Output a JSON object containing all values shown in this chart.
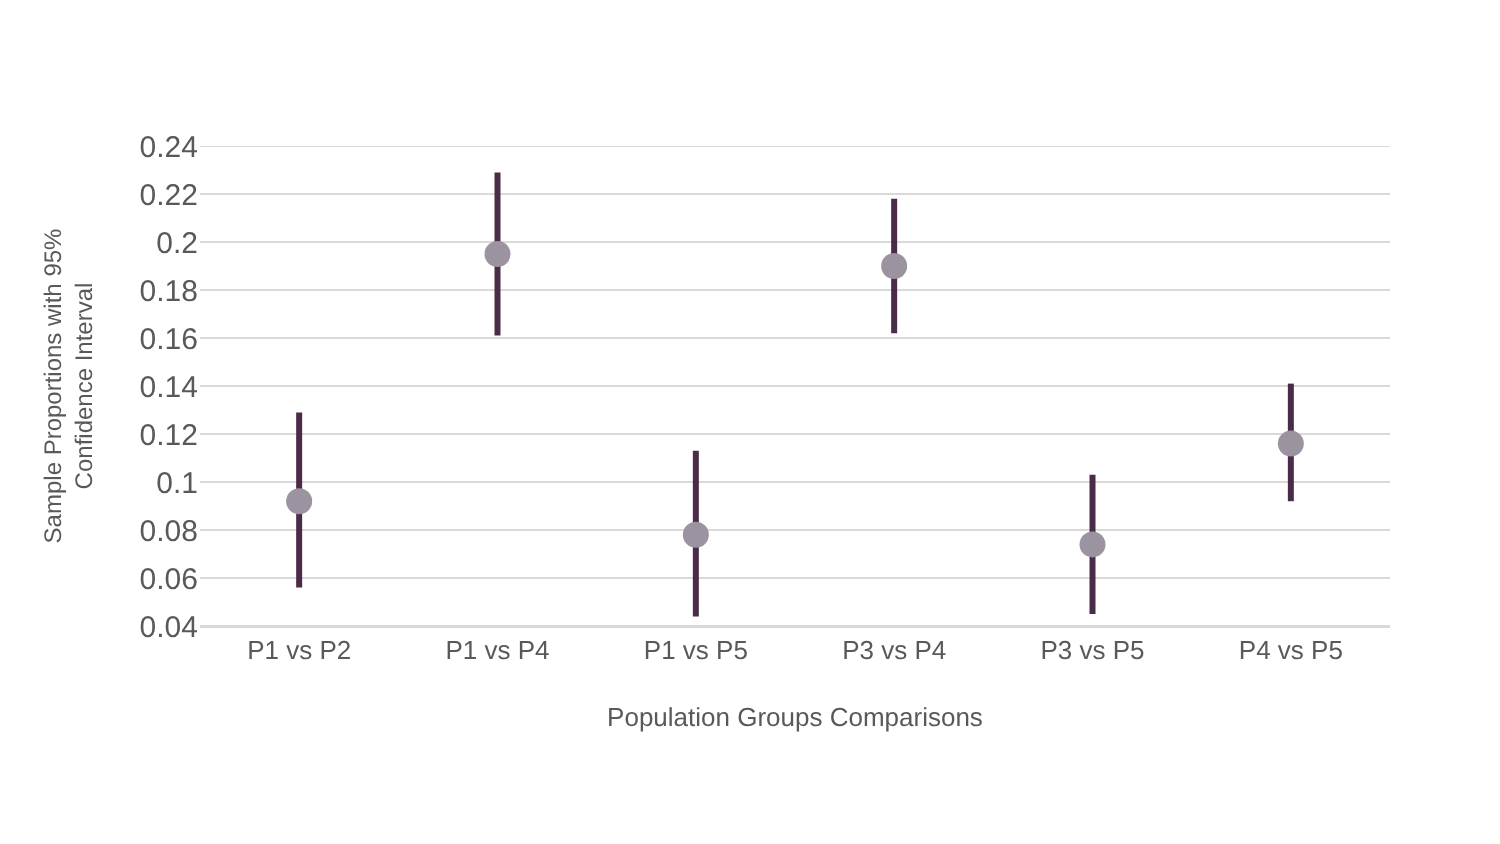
{
  "chart_data": {
    "type": "scatter",
    "xlabel": "Population Groups Comparisons",
    "ylabel": "Sample Proportions with 95%\nConfidence Interval",
    "categories": [
      "P1 vs P2",
      "P1 vs P4",
      "P1 vs P5",
      "P3 vs P4",
      "P3 vs P5",
      "P4 vs P5"
    ],
    "series": [
      {
        "color": "#9b939f",
        "values": [
          0.092,
          0.195,
          0.078,
          0.19,
          0.074,
          0.116
        ],
        "errors": [
          [
            0.056,
            0.129
          ],
          [
            0.161,
            0.229
          ],
          [
            0.044,
            0.113
          ],
          [
            0.162,
            0.218
          ],
          [
            0.045,
            0.103
          ],
          [
            0.092,
            0.141
          ]
        ]
      }
    ],
    "ylim": [
      0.04,
      0.24
    ],
    "yticks": [
      0.04,
      0.06,
      0.08,
      0.1,
      0.12,
      0.14,
      0.16,
      0.18,
      0.2,
      0.22,
      0.24
    ],
    "grid": "y",
    "marker": "circle"
  }
}
